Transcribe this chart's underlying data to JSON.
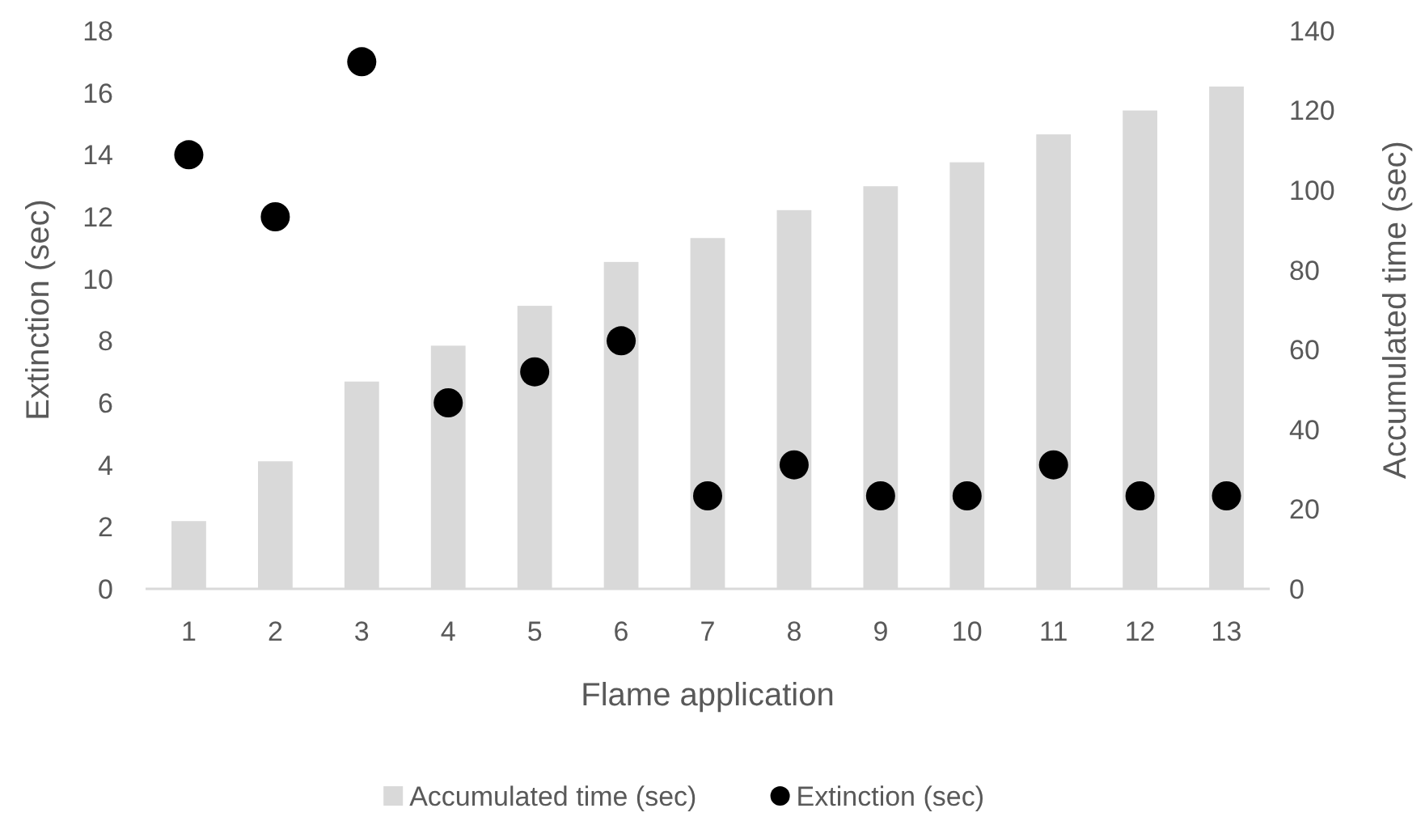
{
  "chart_data": {
    "type": "bar",
    "xlabel": "Flame application",
    "ylabel": "Extinction (sec)",
    "y2label": "Accumulated time (sec)",
    "categories": [
      "1",
      "2",
      "3",
      "4",
      "5",
      "6",
      "7",
      "8",
      "9",
      "10",
      "11",
      "12",
      "13"
    ],
    "series": [
      {
        "name": "Accumulated time (sec)",
        "axis": "y2",
        "color": "#d9d9d9",
        "values": [
          17,
          32,
          52,
          61,
          71,
          82,
          88,
          95,
          101,
          107,
          114,
          120,
          126
        ]
      },
      {
        "name": "Extinction (sec)",
        "type": "scatter",
        "color": "#000000",
        "marker": "circle",
        "values": [
          14,
          12,
          17,
          6,
          7,
          8,
          3,
          4,
          3,
          3,
          4,
          3,
          3
        ]
      }
    ],
    "ylim": [
      0,
      18
    ],
    "yticks": [
      0,
      2,
      4,
      6,
      8,
      10,
      12,
      14,
      16,
      18
    ],
    "y2lim": [
      0,
      140
    ],
    "y2ticks": [
      0,
      20,
      40,
      60,
      80,
      100,
      120,
      140
    ],
    "grid": false,
    "legend": "bottom"
  }
}
